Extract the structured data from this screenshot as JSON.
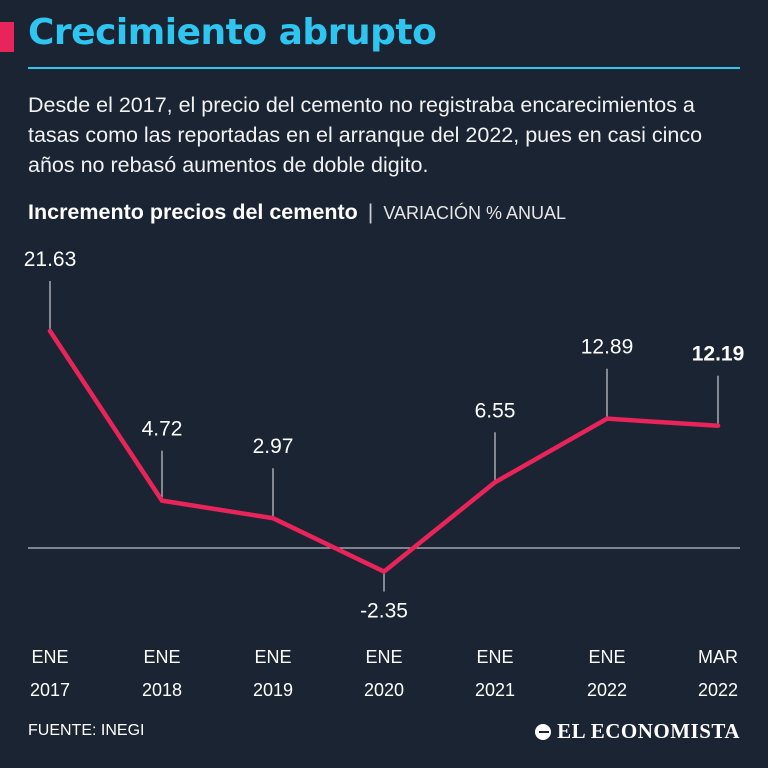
{
  "title": "Crecimiento abrupto",
  "intro": "Desde el 2017, el precio del cemento no registraba encarecimientos a tasas como las reportadas en el arranque del 2022, pues en casi cinco años no rebasó aumentos de doble digito.",
  "subtitle": {
    "main": "Incremento precios del cemento",
    "separator": "|",
    "unit": "VARIACIÓN % ANUAL"
  },
  "chart_data": {
    "type": "line",
    "title": "Incremento precios del cemento",
    "ylabel": "VARIACIÓN % ANUAL",
    "xlabel": "",
    "categories": [
      {
        "month": "ENE",
        "year": "2017"
      },
      {
        "month": "ENE",
        "year": "2018"
      },
      {
        "month": "ENE",
        "year": "2019"
      },
      {
        "month": "ENE",
        "year": "2020"
      },
      {
        "month": "ENE",
        "year": "2021"
      },
      {
        "month": "ENE",
        "year": "2022"
      },
      {
        "month": "MAR",
        "year": "2022"
      }
    ],
    "values": [
      21.63,
      4.72,
      2.97,
      -2.35,
      6.55,
      12.89,
      12.19
    ],
    "labels": [
      "21.63",
      "4.72",
      "2.97",
      "-2.35",
      "6.55",
      "12.89",
      "12.19"
    ],
    "highlight_last": true,
    "ylim": [
      -3,
      22
    ],
    "zero_line": true,
    "line_color": "#e8245a",
    "grid": false
  },
  "footer": {
    "source": "FUENTE: INEGI",
    "brand": "EL ECONOMISTA"
  },
  "colors": {
    "background": "#1b2433",
    "accent": "#e8245a",
    "title": "#2ec5f0",
    "text": "#ffffff"
  }
}
